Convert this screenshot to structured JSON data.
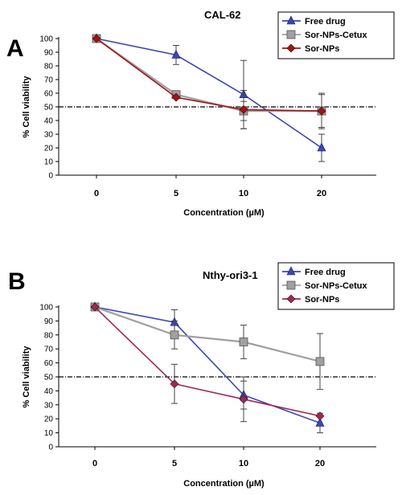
{
  "chart_data": [
    {
      "type": "line",
      "panel_label": "A",
      "title": "CAL-62",
      "xlabel": "Concentration (µM)",
      "ylabel": "% Cell viability",
      "categories": [
        "0",
        "5",
        "10",
        "20"
      ],
      "ylim": [
        0,
        100
      ],
      "yticks": [
        "0",
        "10",
        "20",
        "30",
        "40",
        "50",
        "60",
        "70",
        "80",
        "90",
        "100"
      ],
      "reference_line": 50,
      "legend_position": "top-right",
      "series": [
        {
          "name": "Free drug",
          "color": "#3c46b4",
          "marker": "triangle",
          "values": [
            100,
            88,
            59,
            20
          ],
          "errors": [
            0,
            7,
            25,
            10
          ]
        },
        {
          "name": "Sor-NPs-Cetux",
          "color": "#a0a0a0",
          "marker": "square",
          "values": [
            100,
            59,
            47,
            47
          ],
          "errors": [
            0,
            0,
            7,
            13
          ]
        },
        {
          "name": "Sor-NPs",
          "color": "#a01414",
          "marker": "diamond",
          "values": [
            100,
            57,
            48,
            47
          ],
          "errors": [
            0,
            0,
            14,
            12
          ]
        }
      ]
    },
    {
      "type": "line",
      "panel_label": "B",
      "title": "Nthy-ori3-1",
      "xlabel": "Concentration (µM)",
      "ylabel": "% Cell viability",
      "categories": [
        "0",
        "5",
        "10",
        "20"
      ],
      "ylim": [
        0,
        100
      ],
      "yticks": [
        "0",
        "10",
        "20",
        "30",
        "40",
        "50",
        "60",
        "70",
        "80",
        "90",
        "100"
      ],
      "reference_line": 50,
      "legend_position": "top-right",
      "series": [
        {
          "name": "Free drug",
          "color": "#3c46b4",
          "marker": "triangle",
          "values": [
            100,
            89,
            37,
            17
          ],
          "errors": [
            0,
            9,
            10,
            7
          ]
        },
        {
          "name": "Sor-NPs-Cetux",
          "color": "#a0a0a0",
          "marker": "square",
          "values": [
            100,
            80,
            75,
            61
          ],
          "errors": [
            0,
            10,
            12,
            20
          ]
        },
        {
          "name": "Sor-NPs",
          "color": "#9a2a5a",
          "marker": "diamond",
          "values": [
            100,
            45,
            34,
            22
          ],
          "errors": [
            0,
            14,
            16,
            0
          ]
        }
      ]
    }
  ]
}
